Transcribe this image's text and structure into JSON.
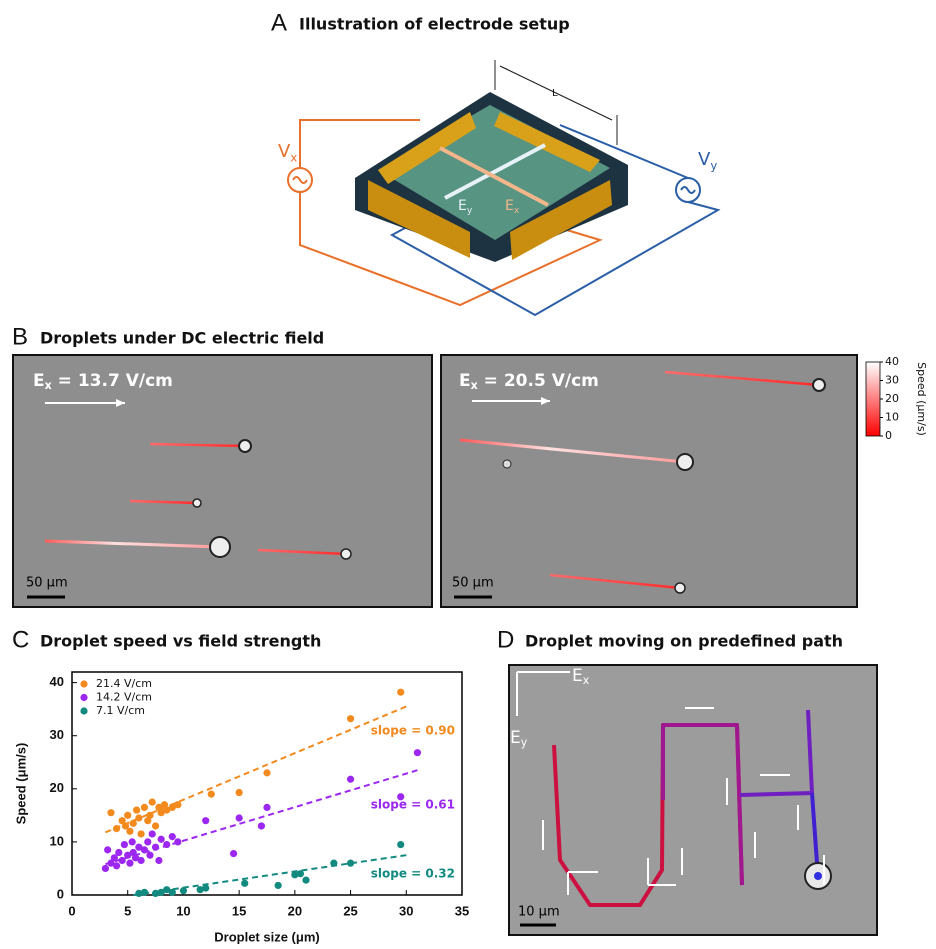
{
  "panels": {
    "a": {
      "letter": "A",
      "title": "Illustration of electrode setup",
      "length": "L",
      "vx": {
        "main": "V",
        "sub": "x"
      },
      "vy": {
        "main": "V",
        "sub": "y"
      },
      "ex": {
        "main": "E",
        "sub": "x"
      },
      "ey": {
        "main": "E",
        "sub": "y"
      }
    },
    "b": {
      "letter": "B",
      "title": "Droplets under DC electric field",
      "left": {
        "main": "E",
        "sub": "x",
        "text": " = 13.7 V/cm",
        "scale": "50 μm"
      },
      "right": {
        "main": "E",
        "sub": "x",
        "text": " = 20.5 V/cm",
        "scale": "50 μm"
      }
    },
    "c": {
      "letter": "C",
      "title": "Droplet speed vs field strength"
    },
    "d": {
      "letter": "D",
      "title": "Droplet moving on predefined path",
      "ex": {
        "main": "E",
        "sub": "x"
      },
      "ey": {
        "main": "E",
        "sub": "y"
      },
      "scale": "10 μm"
    }
  },
  "chart_data": [
    {
      "type": "scatter",
      "x_label": "Droplet size (μm)",
      "y_label": "Speed (μm/s)",
      "xlim": [
        0,
        35
      ],
      "xticks": [
        0,
        5,
        10,
        15,
        20,
        25,
        30,
        35
      ],
      "ylim": [
        0,
        42
      ],
      "yticks": [
        0,
        10,
        20,
        30,
        40
      ],
      "series": [
        {
          "name": "21.4 V/cm",
          "color": "#f28a1e",
          "slope_label": "slope = 0.90",
          "x": [
            3.5,
            4,
            4.5,
            4.8,
            5,
            5.2,
            5.5,
            5.8,
            6,
            6.2,
            6.5,
            6.8,
            7,
            7.2,
            7.5,
            7.8,
            8,
            8.3,
            8.5,
            9,
            9.5,
            12.5,
            15,
            17.5,
            25,
            29.5
          ],
          "values": [
            15.5,
            12.5,
            14,
            13,
            15,
            12,
            13.5,
            16,
            14.5,
            11.5,
            16.5,
            14,
            15,
            17.5,
            13,
            16.5,
            15.5,
            17,
            16,
            16.5,
            17,
            19,
            19.3,
            23,
            33.2,
            38.2
          ],
          "fit": {
            "x": [
              3,
              30
            ],
            "values": [
              11.8,
              35.5
            ]
          }
        },
        {
          "name": "14.2 V/cm",
          "color": "#9b27f0",
          "slope_label": "slope = 0.61",
          "x": [
            3,
            3.2,
            3.5,
            3.8,
            4,
            4.2,
            4.5,
            4.7,
            5,
            5.2,
            5.4,
            5.5,
            5.7,
            6,
            6.2,
            6.5,
            6.8,
            7,
            7.2,
            7.5,
            7.8,
            8,
            8.5,
            9,
            9.5,
            12,
            14.5,
            15,
            17,
            17.5,
            25,
            29.5,
            31
          ],
          "values": [
            5,
            8.5,
            6,
            7,
            5.5,
            8,
            6.5,
            9.5,
            7.5,
            6,
            10,
            8,
            7,
            9,
            6.5,
            8.5,
            10,
            7.5,
            11.5,
            9,
            6.5,
            10.5,
            9.5,
            11,
            10,
            14,
            7.8,
            14.5,
            13,
            16.5,
            21.8,
            18.5,
            26.8
          ],
          "fit": {
            "x": [
              3,
              31
            ],
            "values": [
              5.8,
              23.5
            ]
          }
        },
        {
          "name": "7.1 V/cm",
          "color": "#138a80",
          "slope_label": "slope = 0.32",
          "x": [
            6,
            6.5,
            7.5,
            8,
            8.5,
            9,
            10,
            11.5,
            12,
            15.5,
            18.5,
            20,
            20.5,
            21,
            23.5,
            25,
            29.5
          ],
          "values": [
            0.3,
            0.5,
            0.3,
            0.5,
            1,
            0.5,
            0.8,
            1,
            1.3,
            2.2,
            1.8,
            3.8,
            4,
            2.8,
            6,
            6,
            9.5
          ],
          "fit": {
            "x": [
              5.5,
              30
            ],
            "values": [
              0,
              7.5
            ]
          }
        }
      ]
    },
    {
      "type": "colorbar",
      "label": "Speed (μm/s)",
      "ylim": [
        0,
        40
      ],
      "yticks": [
        0,
        10,
        20,
        30,
        40
      ],
      "colors": [
        "#ff0000",
        "#ffffff"
      ]
    }
  ]
}
